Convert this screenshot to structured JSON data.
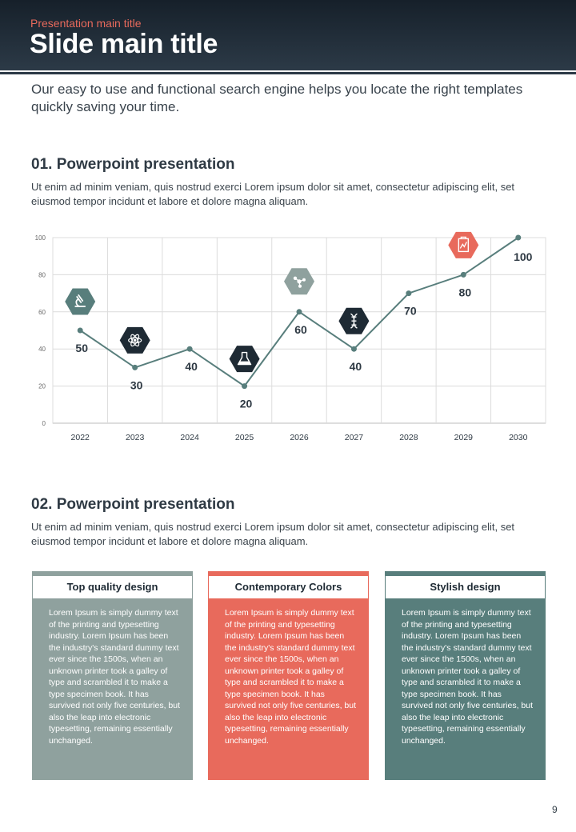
{
  "header": {
    "supertitle": "Presentation main title",
    "title": "Slide main title"
  },
  "intro": "Our easy to use and functional search engine helps you locate the right templates quickly saving your time.",
  "section1": {
    "title": "01. Powerpoint presentation",
    "text": "Ut enim ad minim veniam, quis nostrud exerci  Lorem ipsum dolor sit amet, consectetur adipiscing elit, set eiusmod tempor incidunt et labore et dolore magna aliquam."
  },
  "chart_data": {
    "type": "line",
    "categories": [
      "2022",
      "2023",
      "2024",
      "2025",
      "2026",
      "2027",
      "2028",
      "2029",
      "2030"
    ],
    "values": [
      50,
      30,
      40,
      20,
      60,
      40,
      70,
      80,
      100
    ],
    "data_labels": [
      "50",
      "30",
      "40",
      "20",
      "60",
      "40",
      "70",
      "80",
      "100"
    ],
    "yticks": [
      "0",
      "20",
      "40",
      "60",
      "80",
      "100"
    ],
    "ylim": [
      0,
      100
    ],
    "grid": true,
    "line_color": "#587e7c",
    "markers": [
      {
        "category": "2022",
        "icon": "microscope-icon",
        "color": "#587e7c"
      },
      {
        "category": "2023",
        "icon": "atom-icon",
        "color": "#1e2a34"
      },
      {
        "category": "2025",
        "icon": "flask-icon",
        "color": "#1e2a34"
      },
      {
        "category": "2026",
        "icon": "molecule-icon",
        "color": "#8fa19e"
      },
      {
        "category": "2027",
        "icon": "dna-icon",
        "color": "#1e2a34"
      },
      {
        "category": "2029",
        "icon": "clipboard-chart-icon",
        "color": "#e86a5c"
      }
    ]
  },
  "section2": {
    "title": "02. Powerpoint presentation",
    "text": "Ut enim ad minim veniam, quis nostrud exerci  Lorem ipsum dolor sit amet, consectetur adipiscing elit, set eiusmod tempor incidunt et labore et dolore magna aliquam."
  },
  "cards": [
    {
      "title": "Top quality design",
      "color": "#8fa19e",
      "body": "Lorem Ipsum is simply dummy text of the printing and typesetting industry. Lorem Ipsum has been the industry's standard dummy text ever since the 1500s, when an unknown printer took a galley of type and scrambled it to make a type specimen book. It has survived not only five centuries, but also the leap into electronic typesetting, remaining essentially unchanged."
    },
    {
      "title": "Contemporary Colors",
      "color": "#e86a5c",
      "body": "Lorem Ipsum is simply dummy text of the printing and typesetting industry. Lorem Ipsum has been the industry's standard dummy text ever since the 1500s, when an unknown printer took a galley of type and scrambled it to make a type specimen book. It has survived not only five centuries, but also the leap into electronic typesetting, remaining essentially unchanged."
    },
    {
      "title": "Stylish design",
      "color": "#587e7c",
      "body": "Lorem Ipsum is simply dummy text of the printing and typesetting industry. Lorem Ipsum has been the industry's standard dummy text ever since the 1500s, when an unknown printer took a galley of type and scrambled it to make a type specimen book. It has survived not only five centuries, but also the leap into electronic typesetting, remaining essentially unchanged."
    }
  ],
  "page_number": "9"
}
